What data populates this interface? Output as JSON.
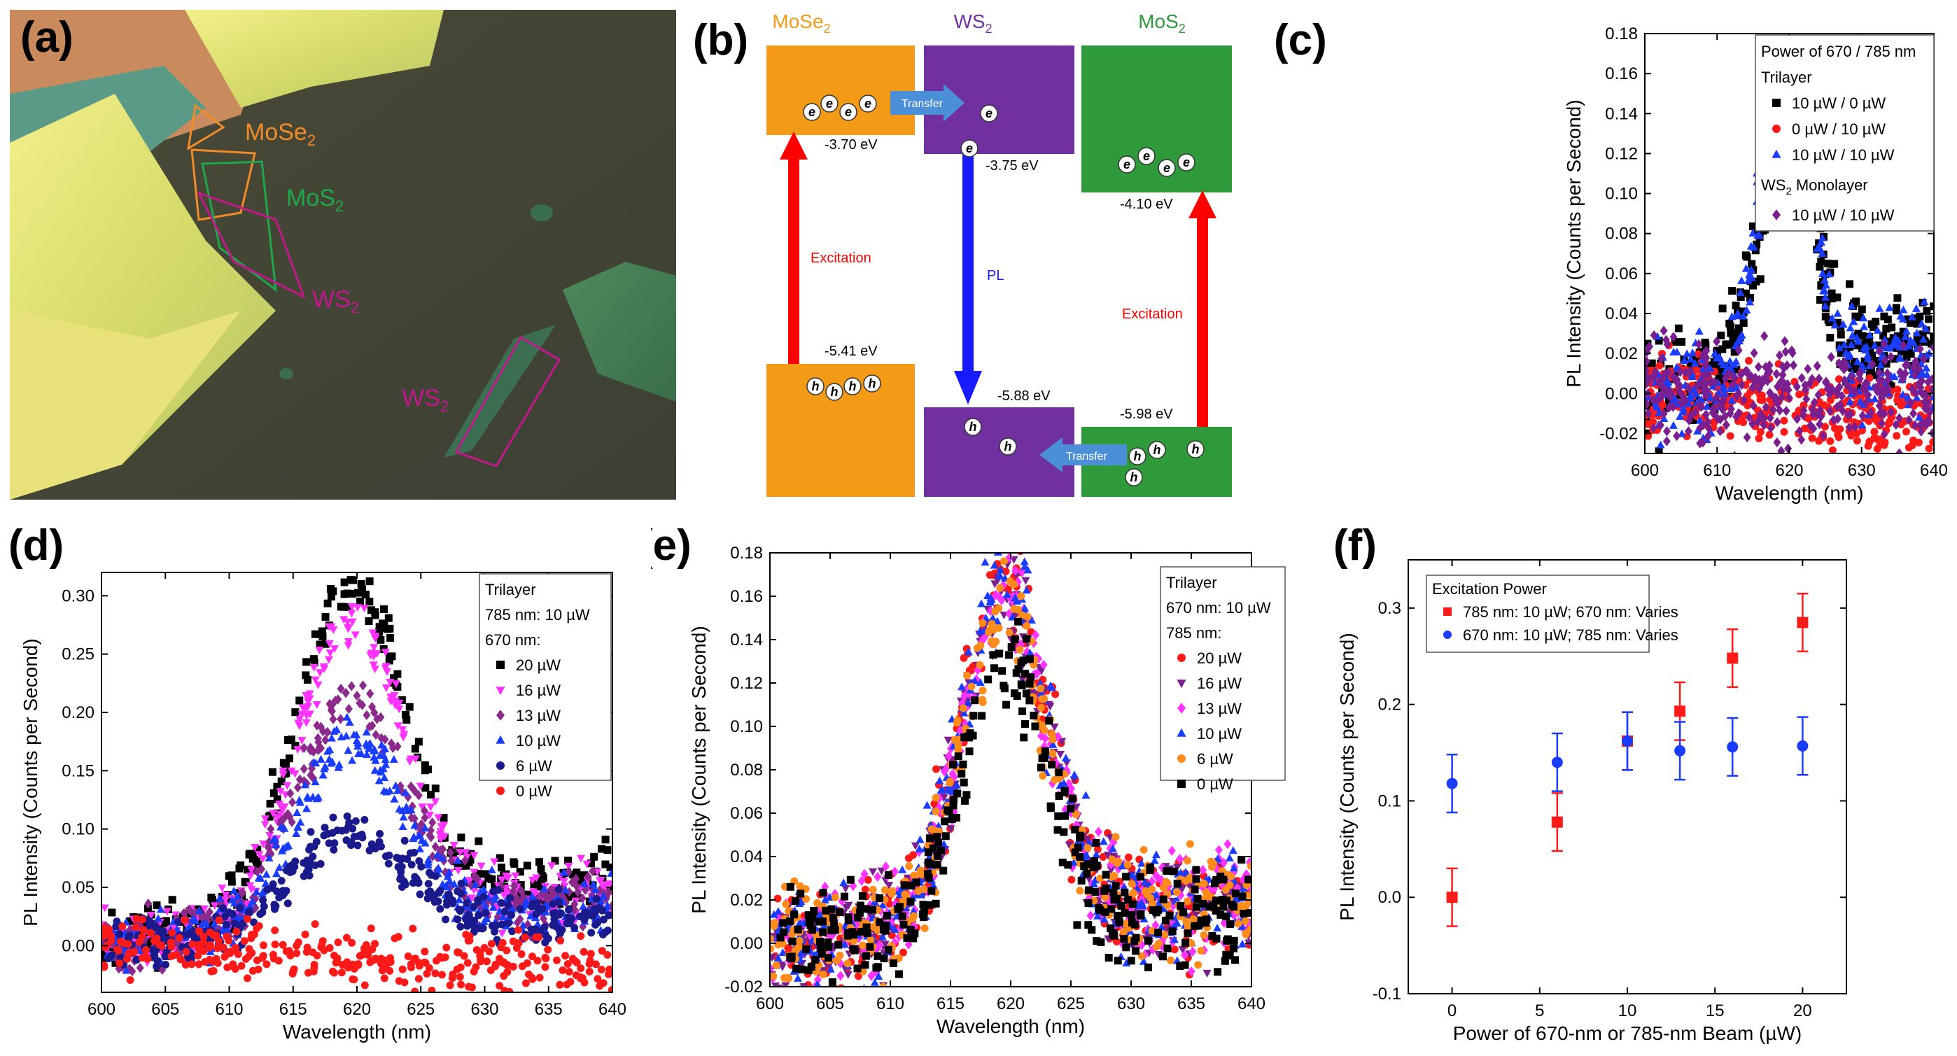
{
  "panels": {
    "a": {
      "label": "(a)",
      "annotations": [
        {
          "text": "MoSe",
          "sub": "2",
          "color": "#f28c28"
        },
        {
          "text": "MoS",
          "sub": "2",
          "color": "#1fa84a"
        },
        {
          "text": "WS",
          "sub": "2",
          "color": "#c2188c"
        },
        {
          "text": "WS",
          "sub": "2",
          "color": "#c2188c"
        }
      ]
    },
    "b": {
      "label": "(b)",
      "materials": [
        {
          "name": "MoSe",
          "sub": "2",
          "color": "#f39a16",
          "cb": "-3.70 eV",
          "vb": "-5.41 eV"
        },
        {
          "name": "WS",
          "sub": "2",
          "color": "#7030a0",
          "cb": "-3.75 eV",
          "vb": "-5.88 eV"
        },
        {
          "name": "MoS",
          "sub": "2",
          "color": "#2e9a3a",
          "cb": "-4.10 eV",
          "vb": "-5.98 eV"
        }
      ],
      "transfer_label": "Transfer",
      "excitation_label": "Excitation",
      "pl_label": "PL",
      "electron": "e",
      "hole": "h"
    }
  },
  "chart_data": [
    {
      "id": "c",
      "label": "(c)",
      "type": "scatter",
      "xlabel": "Wavelength (nm)",
      "ylabel": "PL Intensity (Counts per Second)",
      "xlim": [
        600,
        640
      ],
      "ylim": [
        -0.03,
        0.18
      ],
      "xticks": [
        600,
        610,
        620,
        630,
        640
      ],
      "yticks": [
        -0.02,
        0.0,
        0.02,
        0.04,
        0.06,
        0.08,
        0.1,
        0.12,
        0.14,
        0.16,
        0.18
      ],
      "ydec": 2,
      "legend_title": [
        "Power of 670 / 785 nm",
        "Trilayer"
      ],
      "legend_subtitle": {
        "text": "WS",
        "sub": "2",
        "rest": " Monolayer"
      },
      "series": [
        {
          "name": "10 µW /  0 µW",
          "color": "#000000",
          "marker": "square",
          "peak": 0.125,
          "center": 619.5,
          "width": 3.6,
          "offset": 0.0,
          "tail": 0.03,
          "noise": 0.012
        },
        {
          "name": " 0 µW / 10 µW",
          "color": "#ff1a1a",
          "marker": "circle",
          "peak": 0.0,
          "center": 620,
          "width": 3,
          "offset": 0.0,
          "tail": -0.015,
          "noise": 0.01
        },
        {
          "name": "10 µW / 10 µW",
          "color": "#1a3cff",
          "marker": "triangle",
          "peak": 0.163,
          "center": 619.5,
          "width": 3.4,
          "offset": 0.0,
          "tail": 0.02,
          "noise": 0.012
        },
        {
          "name": "10 µW / 10 µW",
          "color": "#7a1f8f",
          "marker": "diamond",
          "peak": 0.0,
          "center": 620,
          "width": 3,
          "offset": 0.0,
          "tail": 0.0,
          "noise": 0.012,
          "group": "monolayer"
        }
      ]
    },
    {
      "id": "d",
      "label": "(d)",
      "type": "scatter",
      "xlabel": "Wavelength (nm)",
      "ylabel": "PL Intensity (Counts per Second)",
      "xlim": [
        600,
        640
      ],
      "ylim": [
        -0.04,
        0.32
      ],
      "xticks": [
        600,
        605,
        610,
        615,
        620,
        625,
        630,
        635,
        640
      ],
      "yticks": [
        0.0,
        0.05,
        0.1,
        0.15,
        0.2,
        0.25,
        0.3
      ],
      "ydec": 2,
      "legend_title": [
        "Trilayer",
        "785 nm: 10 µW",
        "670 nm:"
      ],
      "series": [
        {
          "name": "20 µW",
          "color": "#000000",
          "marker": "square",
          "peak": 0.285,
          "center": 619.5,
          "width": 4.2,
          "offset": 0.0,
          "tail": 0.06,
          "noise": 0.012
        },
        {
          "name": "16 µW",
          "color": "#ff33ff",
          "marker": "tri-down",
          "peak": 0.255,
          "center": 619.5,
          "width": 4.2,
          "offset": 0.0,
          "tail": 0.05,
          "noise": 0.012
        },
        {
          "name": "13 µW",
          "color": "#8b2a8b",
          "marker": "diamond",
          "peak": 0.195,
          "center": 619.5,
          "width": 4.2,
          "offset": 0.0,
          "tail": 0.04,
          "noise": 0.012
        },
        {
          "name": "10 µW",
          "color": "#1a3cff",
          "marker": "triangle",
          "peak": 0.16,
          "center": 619.5,
          "width": 4.2,
          "offset": 0.0,
          "tail": 0.035,
          "noise": 0.012
        },
        {
          "name": "6 µW",
          "color": "#1a1a8c",
          "marker": "circle",
          "peak": 0.085,
          "center": 619.5,
          "width": 4.5,
          "offset": 0.0,
          "tail": 0.025,
          "noise": 0.01
        },
        {
          "name": "0 µW",
          "color": "#ff1a1a",
          "marker": "circle",
          "peak": 0.0,
          "center": 620,
          "width": 3,
          "offset": 0.0,
          "tail": -0.02,
          "noise": 0.012
        }
      ]
    },
    {
      "id": "e",
      "label": "(e)",
      "type": "scatter",
      "xlabel": "Wavelength (nm)",
      "ylabel": "PL Intensity (Counts per Second)",
      "xlim": [
        600,
        640
      ],
      "ylim": [
        -0.02,
        0.18
      ],
      "xticks": [
        600,
        605,
        610,
        615,
        620,
        625,
        630,
        635,
        640
      ],
      "yticks": [
        -0.02,
        0.0,
        0.02,
        0.04,
        0.06,
        0.08,
        0.1,
        0.12,
        0.14,
        0.16,
        0.18
      ],
      "ydec": 2,
      "legend_title": [
        "Trilayer",
        "670 nm: 10 µW",
        "785 nm:"
      ],
      "series": [
        {
          "name": "20 µW",
          "color": "#ff1a1a",
          "marker": "circle",
          "peak": 0.155,
          "center": 619.5,
          "width": 3.6,
          "offset": 0.0,
          "tail": 0.02,
          "noise": 0.012
        },
        {
          "name": "16 µW",
          "color": "#7a1f8f",
          "marker": "tri-down",
          "peak": 0.15,
          "center": 619.5,
          "width": 3.6,
          "offset": 0.0,
          "tail": 0.02,
          "noise": 0.012
        },
        {
          "name": "13 µW",
          "color": "#ff33ff",
          "marker": "diamond",
          "peak": 0.15,
          "center": 619.5,
          "width": 3.6,
          "offset": 0.0,
          "tail": 0.02,
          "noise": 0.012
        },
        {
          "name": "10 µW",
          "color": "#1a3cff",
          "marker": "triangle",
          "peak": 0.158,
          "center": 619.5,
          "width": 3.6,
          "offset": 0.0,
          "tail": 0.02,
          "noise": 0.012
        },
        {
          "name": "6 µW",
          "color": "#ff8c1a",
          "marker": "circle",
          "peak": 0.14,
          "center": 619.5,
          "width": 3.6,
          "offset": 0.0,
          "tail": 0.02,
          "noise": 0.012
        },
        {
          "name": "0 µW",
          "color": "#000000",
          "marker": "square",
          "peak": 0.122,
          "center": 619.5,
          "width": 3.6,
          "offset": 0.0,
          "tail": 0.015,
          "noise": 0.012
        }
      ]
    },
    {
      "id": "f",
      "label": "(f)",
      "type": "scatter",
      "xlabel": "Power of 670-nm or 785-nm Beam (µW)",
      "ylabel": "PL Intensity (Counts per Second)",
      "xlim": [
        -2.5,
        22.5
      ],
      "ylim": [
        -0.1,
        0.35
      ],
      "xticks": [
        0,
        5,
        10,
        15,
        20
      ],
      "yticks": [
        -0.1,
        0.0,
        0.1,
        0.2,
        0.3
      ],
      "ydec": 1,
      "legend_title": [
        "Excitation Power"
      ],
      "series": [
        {
          "name": "785 nm: 10 µW; 670 nm: Varies",
          "color": "#ff1a1a",
          "marker": "square",
          "x": [
            0,
            6,
            10,
            13,
            16,
            20
          ],
          "y": [
            0.0,
            0.078,
            0.162,
            0.193,
            0.248,
            0.285
          ],
          "err": [
            0.03,
            0.03,
            0.03,
            0.03,
            0.03,
            0.03
          ]
        },
        {
          "name": "670 nm: 10 µW; 785 nm: Varies",
          "color": "#1a3cff",
          "marker": "circle",
          "x": [
            0,
            6,
            10,
            13,
            16,
            20
          ],
          "y": [
            0.118,
            0.14,
            0.162,
            0.152,
            0.156,
            0.157
          ],
          "err": [
            0.03,
            0.03,
            0.03,
            0.03,
            0.03,
            0.03
          ]
        }
      ]
    }
  ]
}
